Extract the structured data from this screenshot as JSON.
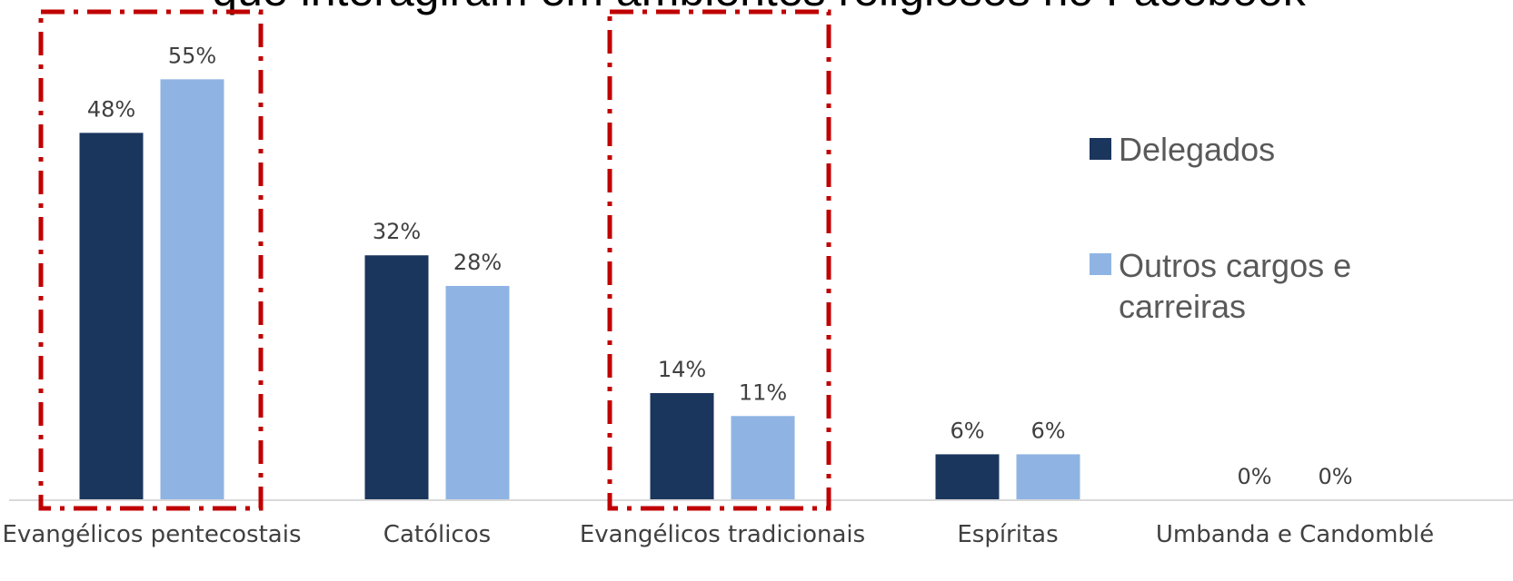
{
  "title_fragment": "que interagiram em ambientes religiosos no Facebook",
  "colors": {
    "delegados": "#1b365d",
    "outros": "#8fb4e3",
    "highlight": "#c00000",
    "axis": "#d9d9d9"
  },
  "chart_data": {
    "type": "bar",
    "categories": [
      "Evangélicos pentecostais",
      "Católicos",
      "Evangélicos tradicionais",
      "Espíritas",
      "Umbanda e Candomblé"
    ],
    "series": [
      {
        "name": "Delegados",
        "values": [
          48,
          32,
          14,
          6,
          0
        ]
      },
      {
        "name": "Outros cargos e carreiras",
        "values": [
          55,
          28,
          11,
          6,
          0
        ]
      }
    ],
    "value_labels": [
      [
        "48%",
        "32%",
        "14%",
        "6%",
        "0%"
      ],
      [
        "55%",
        "28%",
        "11%",
        "6%",
        "0%"
      ]
    ],
    "unit": "%",
    "legend_position": "right",
    "highlighted_categories": [
      "Evangélicos pentecostais",
      "Evangélicos tradicionais"
    ]
  },
  "legend": {
    "delegados_label": "Delegados",
    "outros_line1": "Outros cargos e",
    "outros_line2": "carreiras"
  }
}
